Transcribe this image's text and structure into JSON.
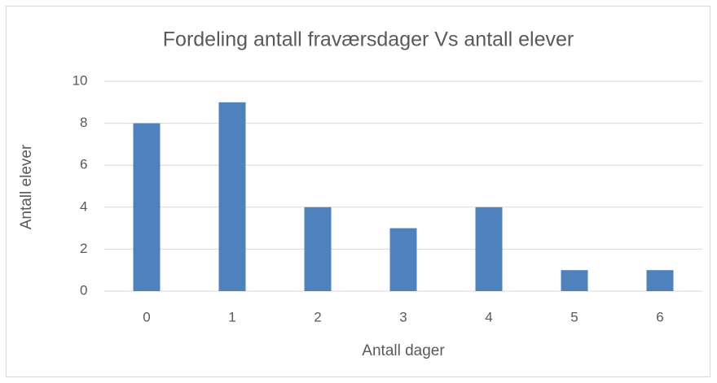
{
  "chart_data": {
    "type": "bar",
    "title": "Fordeling antall fraværsdager Vs antall elever",
    "x_label": "Antall dager",
    "y_label": "Antall elever",
    "categories": [
      "0",
      "1",
      "2",
      "3",
      "4",
      "5",
      "6"
    ],
    "values": [
      8,
      9,
      4,
      3,
      4,
      1,
      1
    ],
    "color": "#4f81bd",
    "ylim": [
      0,
      10
    ],
    "yticks": [
      0,
      2,
      4,
      6,
      8,
      10
    ],
    "grid": true
  }
}
